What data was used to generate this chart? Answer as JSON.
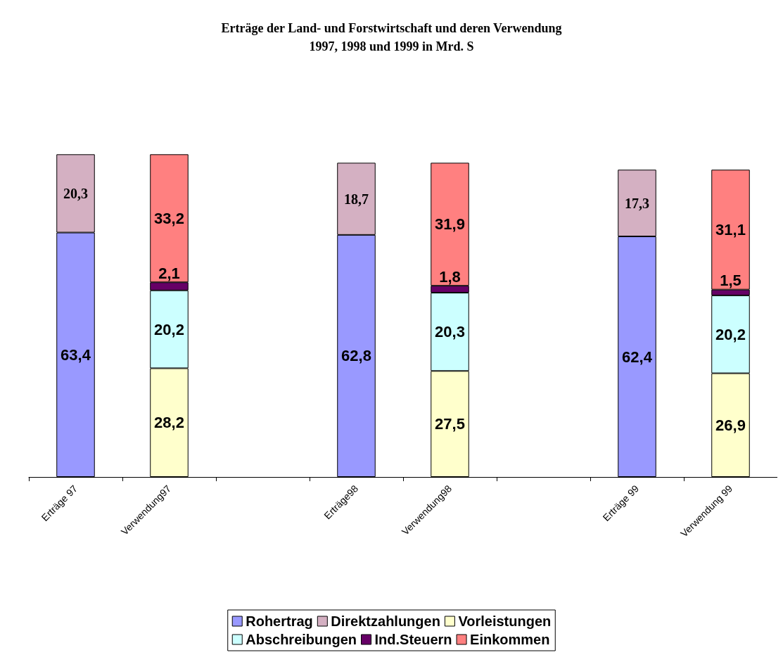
{
  "chart_data": {
    "type": "bar",
    "title": "Erträge der Land- und Forstwirtschaft und deren Verwendung\n1997, 1998 und 1999 in Mrd. S",
    "categories": [
      "Erträge 97",
      "Verwendung97",
      null,
      "Erträge98",
      "Verwendung98",
      null,
      "Erträge 99",
      "Verwendung 99"
    ],
    "stacked": true,
    "legend": "bottom",
    "grid": false,
    "series": [
      {
        "name": "Rohertrag",
        "color": "#9999ff",
        "values": [
          63.4,
          null,
          null,
          62.8,
          null,
          null,
          62.4,
          null
        ],
        "value_labels": [
          "63,4",
          null,
          null,
          "62,8",
          null,
          null,
          "62,4",
          null
        ]
      },
      {
        "name": "Direktzahlungen",
        "color": "#d4b0c2",
        "values": [
          20.3,
          null,
          null,
          18.7,
          null,
          null,
          17.3,
          null
        ],
        "value_labels": [
          "20,3",
          null,
          null,
          "18,7",
          null,
          null,
          "17,3",
          null
        ]
      },
      {
        "name": "Vorleistungen",
        "color": "#ffffcc",
        "values": [
          null,
          28.2,
          null,
          null,
          27.5,
          null,
          null,
          26.9
        ],
        "value_labels": [
          null,
          "28,2",
          null,
          null,
          "27,5",
          null,
          null,
          "26,9"
        ]
      },
      {
        "name": "Abschreibungen",
        "color": "#ccffff",
        "values": [
          null,
          20.2,
          null,
          null,
          20.3,
          null,
          null,
          20.2
        ],
        "value_labels": [
          null,
          "20,2",
          null,
          null,
          "20,3",
          null,
          null,
          "20,2"
        ]
      },
      {
        "name": "Ind.Steuern",
        "color": "#660066",
        "values": [
          null,
          2.1,
          null,
          null,
          1.8,
          null,
          null,
          1.5
        ],
        "value_labels": [
          null,
          "2,1",
          null,
          null,
          "1,8",
          null,
          null,
          "1,5"
        ]
      },
      {
        "name": "Einkommen",
        "color": "#ff8080",
        "values": [
          null,
          33.2,
          null,
          null,
          31.9,
          null,
          null,
          31.1
        ],
        "value_labels": [
          null,
          "33,2",
          null,
          null,
          "31,9",
          null,
          null,
          "31,1"
        ]
      }
    ]
  }
}
